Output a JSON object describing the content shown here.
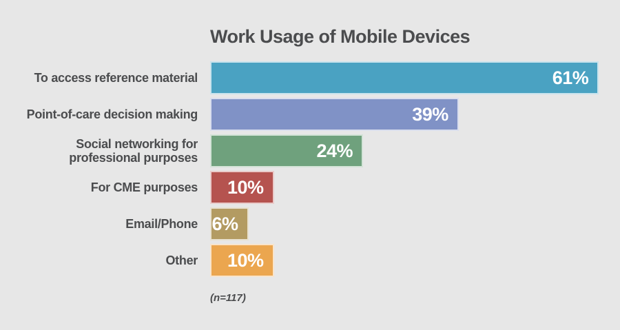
{
  "page": {
    "background_color": "#E7E7E7",
    "text_color": "#4B4C4E"
  },
  "chart": {
    "title": "Work Usage of Mobile Devices",
    "footnote": "(n=117)"
  },
  "chart_data": {
    "type": "bar",
    "orientation": "horizontal",
    "title": "Work Usage of Mobile Devices",
    "categories": [
      "To access reference material",
      "Point-of-care decision making",
      "Social networking for\nprofessional purposes",
      "For CME purposes",
      "Email/Phone",
      "Other"
    ],
    "values": [
      61,
      39,
      24,
      10,
      6,
      10
    ],
    "value_labels": [
      "61%",
      "39%",
      "24%",
      "10%",
      "6%",
      "10%"
    ],
    "bar_colors": [
      "#4AA2C2",
      "#8092C6",
      "#6FA17D",
      "#B5534F",
      "#B39B62",
      "#EBA64F"
    ],
    "value_label_color": "#FFFFFF",
    "xlim": [
      0,
      64
    ],
    "note": "(n=117)",
    "legend": false,
    "grid": false,
    "xlabel": "",
    "ylabel": ""
  }
}
